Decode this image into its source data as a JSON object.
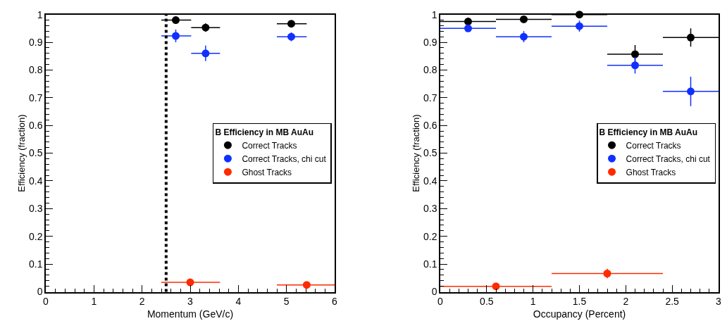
{
  "chart_data": [
    {
      "type": "scatter",
      "xlabel": "Momentum (GeV/c)",
      "ylabel": "Efficiency (fraction)",
      "legend_title": "B Efficiency in MB AuAu",
      "legend": "right",
      "marker": "circle",
      "xlim": [
        0,
        6
      ],
      "xticks": [
        0,
        1,
        2,
        3,
        4,
        5,
        6
      ],
      "ylim": [
        0,
        1
      ],
      "yticks": [
        0,
        0.1,
        0.2,
        0.3,
        0.4,
        0.5,
        0.6,
        0.7,
        0.8,
        0.9,
        1
      ],
      "ref_lines": [
        {
          "axis": "x",
          "value": 2.5,
          "color": "#000000",
          "line_style": "dotted"
        }
      ],
      "series": [
        {
          "name": "Correct Tracks",
          "color": "#000000",
          "x": [
            2.7,
            3.32,
            5.1
          ],
          "values": [
            0.98,
            0.953,
            0.967
          ],
          "errors": [
            0.01,
            0.015,
            0.007
          ],
          "xerrors": [
            [
              2.4,
              3.02
            ],
            [
              3.02,
              3.62
            ],
            [
              4.8,
              5.42
            ]
          ]
        },
        {
          "name": "Correct Tracks, chi cut",
          "color": "#1030ff",
          "x": [
            2.7,
            3.32,
            5.1
          ],
          "values": [
            0.923,
            0.86,
            0.92
          ],
          "errors": [
            0.023,
            0.028,
            0.016
          ],
          "xerrors": [
            [
              2.4,
              3.02
            ],
            [
              3.02,
              3.62
            ],
            [
              4.8,
              5.42
            ]
          ]
        },
        {
          "name": "Ghost Tracks",
          "color": "#ff2a00",
          "x": [
            3.0,
            5.42
          ],
          "values": [
            0.034,
            0.025
          ],
          "errors": [
            0.004,
            0.004
          ],
          "xerrors": [
            [
              2.4,
              3.62
            ],
            [
              4.8,
              6.0
            ]
          ]
        }
      ]
    },
    {
      "type": "scatter",
      "xlabel": "Occupancy (Percent)",
      "ylabel": "Efficiency (fraction)",
      "legend_title": "B Efficiency in MB AuAu",
      "legend": "right",
      "marker": "circle",
      "xlim": [
        0,
        3
      ],
      "xticks": [
        0,
        0.5,
        1,
        1.5,
        2,
        2.5,
        3
      ],
      "ylim": [
        0,
        1
      ],
      "yticks": [
        0,
        0.1,
        0.2,
        0.3,
        0.4,
        0.5,
        0.6,
        0.7,
        0.8,
        0.9,
        1
      ],
      "series": [
        {
          "name": "Correct Tracks",
          "color": "#000000",
          "x": [
            0.3,
            0.9,
            1.5,
            2.1,
            2.7
          ],
          "values": [
            0.975,
            0.983,
            1.0,
            0.857,
            0.917
          ],
          "errors": [
            0.005,
            0.005,
            0.005,
            0.033,
            0.033
          ],
          "xerrors": [
            [
              0,
              0.6
            ],
            [
              0.6,
              1.2
            ],
            [
              1.2,
              1.8
            ],
            [
              1.8,
              2.4
            ],
            [
              2.4,
              3.0
            ]
          ]
        },
        {
          "name": "Correct Tracks, chi cut",
          "color": "#1030ff",
          "x": [
            0.3,
            0.9,
            1.5,
            2.1,
            2.7
          ],
          "values": [
            0.95,
            0.92,
            0.958,
            0.817,
            0.723
          ],
          "errors": [
            0.005,
            0.02,
            0.02,
            0.03,
            0.053
          ],
          "xerrors": [
            [
              0,
              0.6
            ],
            [
              0.6,
              1.2
            ],
            [
              1.2,
              1.8
            ],
            [
              1.8,
              2.4
            ],
            [
              2.4,
              3.0
            ]
          ]
        },
        {
          "name": "Ghost Tracks",
          "color": "#ff2a00",
          "x": [
            0.6,
            1.8
          ],
          "values": [
            0.02,
            0.066
          ],
          "errors": [
            0.007,
            0.017
          ],
          "xerrors": [
            [
              0,
              1.2
            ],
            [
              1.2,
              2.4
            ]
          ]
        }
      ]
    }
  ]
}
